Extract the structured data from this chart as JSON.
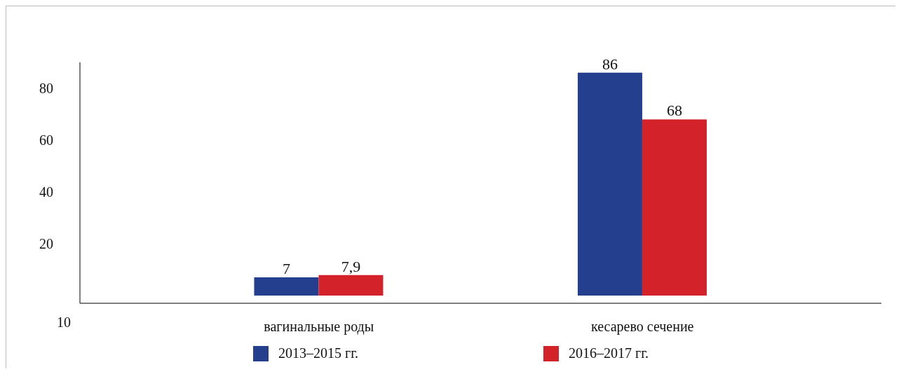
{
  "chart_data": {
    "type": "bar",
    "categories": [
      "вагинальные роды",
      "кесарево сечение"
    ],
    "series": [
      {
        "name": "2013–2015 гг.",
        "color": "#253f8f",
        "values": [
          7,
          86
        ],
        "value_labels": [
          "7",
          "86"
        ]
      },
      {
        "name": "2016–2017 гг.",
        "color": "#d3222a",
        "values": [
          7.9,
          68
        ],
        "value_labels": [
          "7,9",
          "68"
        ]
      }
    ],
    "ylim": [
      -3,
      90
    ],
    "yticks": [
      20,
      40,
      60,
      80
    ],
    "grid": false,
    "legend": "bottom",
    "annotations": [
      "10"
    ]
  }
}
